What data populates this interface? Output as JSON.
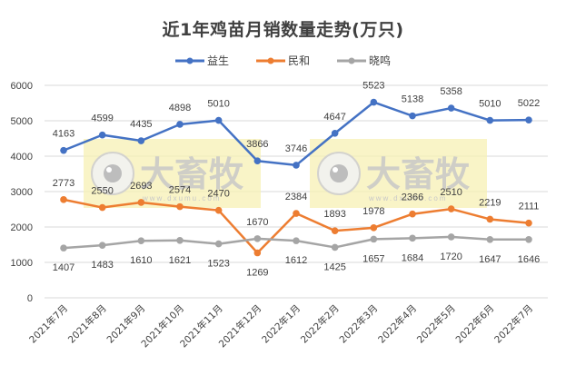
{
  "title": "近1年鸡苗月销数量走势(万只)",
  "legend": [
    {
      "name": "益生",
      "color": "#4472C4"
    },
    {
      "name": "民和",
      "color": "#ED7D31"
    },
    {
      "name": "晓鸣",
      "color": "#A5A5A5"
    }
  ],
  "watermark": {
    "text": "大畜牧",
    "url_text": "www.dxumu.com"
  },
  "chart_data": {
    "type": "line",
    "title": "近1年鸡苗月销数量走势(万只)",
    "xlabel": "",
    "ylabel": "",
    "ylim": [
      0,
      6000
    ],
    "yticks": [
      0,
      1000,
      2000,
      3000,
      4000,
      5000,
      6000
    ],
    "grid": true,
    "legend_position": "top",
    "categories": [
      "2021年7月",
      "2021年8月",
      "2021年9月",
      "2021年10月",
      "2021年11月",
      "2021年12月",
      "2022年1月",
      "2022年2月",
      "2022年3月",
      "2022年4月",
      "2022年5月",
      "2022年6月",
      "2022年7月"
    ],
    "series": [
      {
        "name": "益生",
        "color": "#4472C4",
        "values": [
          4163,
          4599,
          4435,
          4898,
          5010,
          3866,
          3746,
          4647,
          5523,
          5138,
          5358,
          5010,
          5022
        ]
      },
      {
        "name": "民和",
        "color": "#ED7D31",
        "values": [
          2773,
          2550,
          2693,
          2574,
          2470,
          1269,
          2384,
          1893,
          1978,
          2366,
          2510,
          2219,
          2111
        ]
      },
      {
        "name": "晓鸣",
        "color": "#A5A5A5",
        "values": [
          1407,
          1483,
          1610,
          1621,
          1523,
          1670,
          1612,
          1425,
          1657,
          1684,
          1720,
          1647,
          1646
        ]
      }
    ]
  }
}
